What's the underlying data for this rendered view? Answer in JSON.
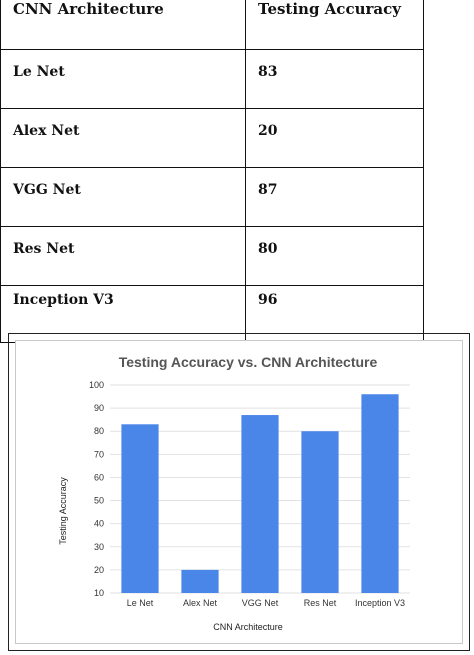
{
  "table": {
    "headers": [
      "CNN Architecture",
      "Testing Accuracy"
    ],
    "rows": [
      [
        "Le Net",
        "83"
      ],
      [
        "Alex Net",
        "20"
      ],
      [
        "VGG Net",
        "87"
      ],
      [
        "Res Net",
        "80"
      ],
      [
        "Inception V3",
        "96"
      ]
    ]
  },
  "chart_data": {
    "type": "bar",
    "title": "Testing Accuracy vs. CNN Architecture",
    "xlabel": "CNN Architecture",
    "ylabel": "Testing Accuracy",
    "categories": [
      "Le Net",
      "Alex Net",
      "VGG Net",
      "Res Net",
      "Inception V3"
    ],
    "values": [
      83,
      20,
      87,
      80,
      96
    ],
    "ylim": [
      10,
      100
    ],
    "yticks": [
      10,
      20,
      30,
      40,
      50,
      60,
      70,
      80,
      90,
      100
    ],
    "grid": true,
    "bar_color": "#4a86e8",
    "legend": "none"
  }
}
